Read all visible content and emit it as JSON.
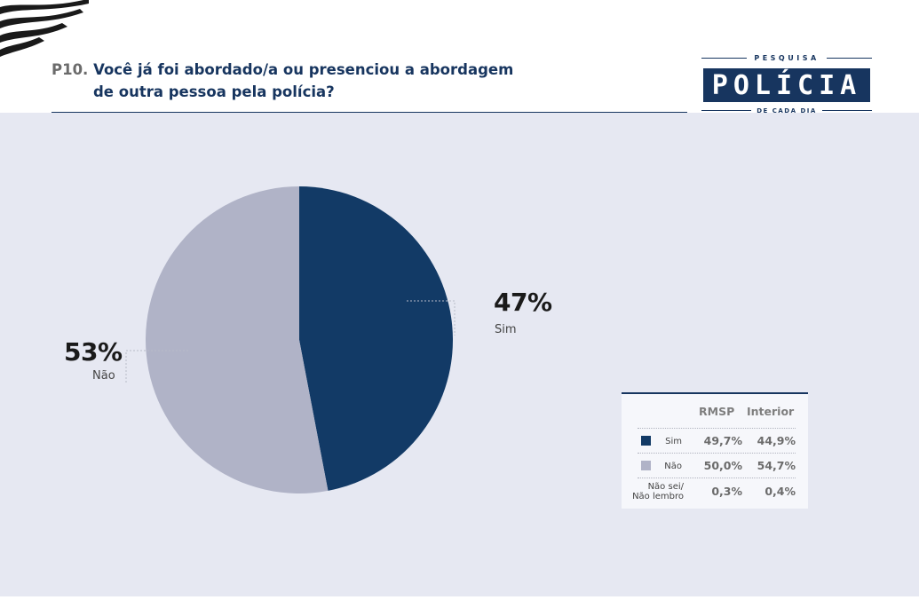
{
  "question": {
    "number": "P10.",
    "line1": "Você já foi abordado/a ou presenciou a abordagem",
    "line2": "de outra pessoa pela polícia?"
  },
  "logo": {
    "top": "PESQUISA",
    "main": "POLÍCIA",
    "bottom": "DE CADA DIA"
  },
  "colors": {
    "sim": "#123a66",
    "nao": "#b0b3c7",
    "accent": "#17355f",
    "panel": "#e6e8f2"
  },
  "chart_data": {
    "type": "pie",
    "slices": [
      {
        "label": "Sim",
        "value": 47,
        "display": "47%"
      },
      {
        "label": "Não",
        "value": 53,
        "display": "53%"
      }
    ]
  },
  "table": {
    "headers": [
      "RMSP",
      "Interior"
    ],
    "rows": [
      {
        "label": "Sim",
        "rmsp": "49,7%",
        "interior": "44,9%"
      },
      {
        "label": "Não",
        "rmsp": "50,0%",
        "interior": "54,7%"
      },
      {
        "label_line1": "Não sei/",
        "label_line2": "Não lembro",
        "rmsp": "0,3%",
        "interior": "0,4%"
      }
    ]
  }
}
